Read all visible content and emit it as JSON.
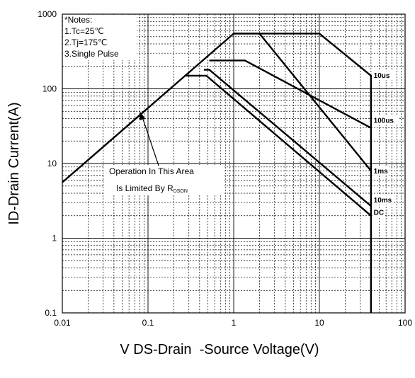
{
  "chart_data": {
    "type": "line",
    "title": "",
    "xlabel": "V DS-Drain  -Source Voltage(V)",
    "ylabel": "ID-Drain Current(A)",
    "x_scale": "log",
    "y_scale": "log",
    "xlim": [
      0.01,
      100
    ],
    "ylim": [
      0.1,
      1000
    ],
    "grid": true,
    "x_ticks": [
      "0.01",
      "0.1",
      "1",
      "10",
      "100"
    ],
    "y_ticks": [
      "1000",
      "100",
      "10",
      "1",
      "0.1"
    ],
    "notes": [
      "*Notes:",
      "1.Tc=25℃",
      "2.Tj=175℃",
      "3.Single Pulse"
    ],
    "annotation": {
      "line1": "Operation In This Area",
      "line2_prefix": "Is Limited By R",
      "line2_sub": "DSON",
      "arrow_tip": [
        0.08,
        50
      ]
    },
    "series": [
      {
        "name": "10us",
        "points": [
          [
            0.01,
            5.6
          ],
          [
            1.0,
            550
          ],
          [
            10,
            550
          ],
          [
            40,
            150
          ],
          [
            40,
            0.1
          ]
        ]
      },
      {
        "name": "100us",
        "points": [
          [
            0.52,
            240
          ],
          [
            1.35,
            240
          ],
          [
            40,
            30
          ]
        ]
      },
      {
        "name": "1ms",
        "points": [
          [
            1.0,
            550
          ],
          [
            2.0,
            550
          ],
          [
            40,
            8
          ]
        ]
      },
      {
        "name": "10ms",
        "points": [
          [
            0.45,
            180
          ],
          [
            0.52,
            180
          ],
          [
            40,
            2.7
          ]
        ]
      },
      {
        "name": "DC",
        "points": [
          [
            0.27,
            150
          ],
          [
            0.48,
            150
          ],
          [
            40,
            2.0
          ]
        ]
      }
    ],
    "series_labels": [
      {
        "text": "10us",
        "x": 43,
        "y": 140
      },
      {
        "text": "100us",
        "x": 43,
        "y": 35
      },
      {
        "text": "1ms",
        "x": 43,
        "y": 7.4
      },
      {
        "text": "10ms",
        "x": 43,
        "y": 3.0
      },
      {
        "text": "DC",
        "x": 43,
        "y": 2.05
      }
    ]
  }
}
